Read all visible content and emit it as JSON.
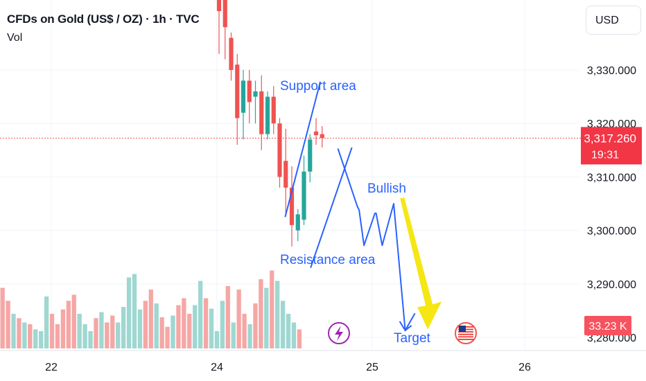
{
  "header": {
    "title": "CFDs on Gold (US$ / OZ) · 1h · TVC",
    "vol_label": "Vol",
    "currency": "USD"
  },
  "colors": {
    "up": "#26a69a",
    "down": "#ef5350",
    "vol_up": "#9fd7d1",
    "vol_down": "#f5a7a5",
    "annotation": "#2962ff",
    "arrow": "#f5e614",
    "price_line": "#ef5350",
    "grid": "#f0f3fa"
  },
  "chart_data": {
    "type": "candlestick",
    "symbol": "CFDs on Gold (US$ / OZ)",
    "interval": "1h",
    "source": "TVC",
    "x_tick_labels": [
      "22",
      "24",
      "25",
      "26"
    ],
    "y_tick_labels": [
      "3,330.000",
      "3,320.000",
      "3,310.000",
      "3,300.000",
      "3,290.000",
      "3,280.000"
    ],
    "ylim": [
      3278,
      3344
    ],
    "current_price": {
      "label": "3,317.260",
      "countdown": "19:31",
      "value": 3317.26
    },
    "volume_label": "33.23 K",
    "grid": true,
    "candles": [
      {
        "t": "23 22:00",
        "o": 3351,
        "h": 3356,
        "l": 3333,
        "c": 3341
      },
      {
        "t": "24 00:00",
        "o": 3355,
        "h": 3365,
        "l": 3332,
        "c": 3338
      },
      {
        "t": "24 01:00",
        "o": 3336,
        "h": 3337,
        "l": 3328,
        "c": 3330
      },
      {
        "t": "24 02:00",
        "o": 3331,
        "h": 3333,
        "l": 3316,
        "c": 3321
      },
      {
        "t": "24 03:00",
        "o": 3322,
        "h": 3330,
        "l": 3317,
        "c": 3328
      },
      {
        "t": "24 04:00",
        "o": 3328,
        "h": 3330,
        "l": 3320,
        "c": 3324
      },
      {
        "t": "24 05:00",
        "o": 3325,
        "h": 3328,
        "l": 3320,
        "c": 3326
      },
      {
        "t": "24 06:00",
        "o": 3326,
        "h": 3329,
        "l": 3315,
        "c": 3318
      },
      {
        "t": "24 07:00",
        "o": 3318,
        "h": 3326,
        "l": 3317,
        "c": 3325
      },
      {
        "t": "24 08:00",
        "o": 3325,
        "h": 3327,
        "l": 3318,
        "c": 3320
      },
      {
        "t": "24 09:00",
        "o": 3320,
        "h": 3321,
        "l": 3308,
        "c": 3310
      },
      {
        "t": "24 10:00",
        "o": 3313,
        "h": 3319,
        "l": 3303,
        "c": 3308
      },
      {
        "t": "24 11:00",
        "o": 3308,
        "h": 3312,
        "l": 3297,
        "c": 3301
      },
      {
        "t": "24 12:00",
        "o": 3300,
        "h": 3304,
        "l": 3298,
        "c": 3303
      },
      {
        "t": "24 13:00",
        "o": 3302,
        "h": 3314,
        "l": 3301,
        "c": 3311
      },
      {
        "t": "24 14:00",
        "o": 3311,
        "h": 3318,
        "l": 3309,
        "c": 3317
      },
      {
        "t": "24 15:00",
        "o": 3318.5,
        "h": 3321,
        "l": 3316,
        "c": 3317.8
      },
      {
        "t": "24 16:00",
        "o": 3318,
        "h": 3319.5,
        "l": 3315.5,
        "c": 3317.26
      }
    ],
    "volume": {
      "note": "relative volume bars (0-1), oldest to newest",
      "bars": [
        {
          "v": 0.7,
          "up": false
        },
        {
          "v": 0.55,
          "up": false
        },
        {
          "v": 0.4,
          "up": true
        },
        {
          "v": 0.35,
          "up": false
        },
        {
          "v": 0.3,
          "up": true
        },
        {
          "v": 0.28,
          "up": false
        },
        {
          "v": 0.22,
          "up": true
        },
        {
          "v": 0.2,
          "up": true
        },
        {
          "v": 0.6,
          "up": true
        },
        {
          "v": 0.4,
          "up": false
        },
        {
          "v": 0.28,
          "up": false
        },
        {
          "v": 0.45,
          "up": false
        },
        {
          "v": 0.55,
          "up": false
        },
        {
          "v": 0.62,
          "up": false
        },
        {
          "v": 0.4,
          "up": true
        },
        {
          "v": 0.28,
          "up": true
        },
        {
          "v": 0.2,
          "up": true
        },
        {
          "v": 0.35,
          "up": false
        },
        {
          "v": 0.42,
          "up": true
        },
        {
          "v": 0.3,
          "up": false
        },
        {
          "v": 0.38,
          "up": false
        },
        {
          "v": 0.3,
          "up": true
        },
        {
          "v": 0.48,
          "up": true
        },
        {
          "v": 0.82,
          "up": true
        },
        {
          "v": 0.86,
          "up": true
        },
        {
          "v": 0.45,
          "up": true
        },
        {
          "v": 0.55,
          "up": false
        },
        {
          "v": 0.68,
          "up": false
        },
        {
          "v": 0.52,
          "up": true
        },
        {
          "v": 0.36,
          "up": false
        },
        {
          "v": 0.25,
          "up": false
        },
        {
          "v": 0.38,
          "up": true
        },
        {
          "v": 0.5,
          "up": false
        },
        {
          "v": 0.58,
          "up": false
        },
        {
          "v": 0.4,
          "up": false
        },
        {
          "v": 0.5,
          "up": true
        },
        {
          "v": 0.78,
          "up": true
        },
        {
          "v": 0.58,
          "up": false
        },
        {
          "v": 0.46,
          "up": true
        },
        {
          "v": 0.2,
          "up": true
        },
        {
          "v": 0.55,
          "up": true
        },
        {
          "v": 0.72,
          "up": false
        },
        {
          "v": 0.3,
          "up": true
        },
        {
          "v": 0.68,
          "up": false
        },
        {
          "v": 0.4,
          "up": false
        },
        {
          "v": 0.28,
          "up": true
        },
        {
          "v": 0.52,
          "up": false
        },
        {
          "v": 0.8,
          "up": false
        },
        {
          "v": 0.7,
          "up": true
        },
        {
          "v": 0.9,
          "up": false
        },
        {
          "v": 0.78,
          "up": true
        },
        {
          "v": 0.55,
          "up": true
        },
        {
          "v": 0.4,
          "up": true
        },
        {
          "v": 0.3,
          "up": true
        },
        {
          "v": 0.22,
          "up": false
        }
      ]
    },
    "annotations": {
      "texts": [
        {
          "key": "support",
          "text": "Support area"
        },
        {
          "key": "resistance",
          "text": "Resistance area"
        },
        {
          "key": "bullish",
          "text": "Bullish"
        },
        {
          "key": "target",
          "text": "Target"
        }
      ]
    }
  }
}
